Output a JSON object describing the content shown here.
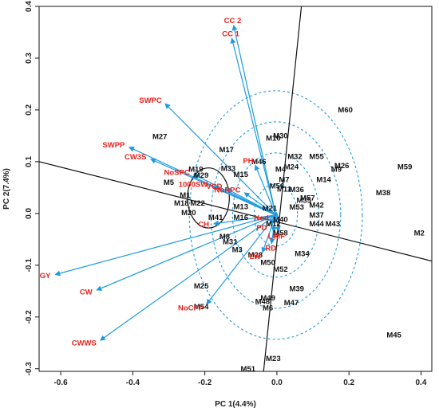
{
  "chart_data": {
    "type": "scatter",
    "subtype": "biplot",
    "title": "",
    "xlabel": "PC 1(4.4%)",
    "ylabel": "PC 2(7.4%)",
    "xlim": [
      -0.66,
      0.43
    ],
    "ylim": [
      -0.305,
      0.4
    ],
    "xticks": [
      -0.6,
      -0.4,
      -0.2,
      0.0,
      0.2,
      0.4
    ],
    "xtick_labels": [
      "-0.6",
      "-0.4",
      "-0.2",
      "0.0",
      "0.2",
      "0.4"
    ],
    "yticks": [
      -0.3,
      -0.2,
      -0.1,
      0.0,
      0.1,
      0.2,
      0.3,
      0.4
    ],
    "ytick_labels": [
      "-0.3",
      "-0.2",
      "-0.1",
      "0.0",
      "0.1",
      "0.2",
      "0.3",
      "0.4"
    ],
    "grid": false,
    "colors": {
      "vector": "#1e9be0",
      "vector_label": "#e8211b",
      "observation_label": "#111111",
      "circle": "#1e9be0",
      "axis_line": "#111111"
    },
    "origin": [
      -0.003,
      -0.003
    ],
    "concentric_circle_radii": [
      0.06,
      0.12,
      0.18,
      0.24
    ],
    "unit_circle": {
      "center": [
        -0.19,
        0.03
      ],
      "radius": 0.058
    },
    "axis_lines": [
      {
        "from": [
          -0.66,
          0.1
        ],
        "to": [
          0.43,
          -0.092
        ]
      },
      {
        "from": [
          -0.037,
          -0.305
        ],
        "to": [
          0.068,
          0.4
        ]
      }
    ],
    "vectors": [
      {
        "label": "CC 2",
        "x": -0.12,
        "y": 0.363
      },
      {
        "label": "CC 1",
        "x": -0.125,
        "y": 0.338
      },
      {
        "label": "SWPC",
        "x": -0.31,
        "y": 0.212
      },
      {
        "label": "SWPP",
        "x": -0.41,
        "y": 0.128
      },
      {
        "label": "CW3S",
        "x": -0.35,
        "y": 0.105
      },
      {
        "label": "NoSPC",
        "x": -0.23,
        "y": 0.075
      },
      {
        "label": "1000SW",
        "x": -0.18,
        "y": 0.052
      },
      {
        "label": "VCD",
        "x": -0.14,
        "y": 0.048
      },
      {
        "label": "NoRPC",
        "x": -0.09,
        "y": 0.04
      },
      {
        "label": "PH",
        "x": -0.06,
        "y": 0.093
      },
      {
        "label": "CH",
        "x": -0.175,
        "y": -0.02
      },
      {
        "label": "GY",
        "x": -0.615,
        "y": -0.118
      },
      {
        "label": "CW",
        "x": -0.5,
        "y": -0.148
      },
      {
        "label": "CWWS",
        "x": -0.49,
        "y": -0.245
      },
      {
        "label": "NoCPP",
        "x": -0.195,
        "y": -0.175
      },
      {
        "label": "Nod",
        "x": -0.01,
        "y": -0.005
      },
      {
        "label": "PD",
        "x": -0.02,
        "y": -0.02
      },
      {
        "label": "LF",
        "x": -0.01,
        "y": -0.035
      },
      {
        "label": "MF",
        "x": 0.005,
        "y": -0.035
      },
      {
        "label": "RD",
        "x": -0.015,
        "y": -0.058
      },
      {
        "label": "LW",
        "x": -0.04,
        "y": -0.075
      }
    ],
    "observations": [
      {
        "label": "M1",
        "x": -0.255,
        "y": 0.035
      },
      {
        "label": "M2",
        "x": 0.395,
        "y": -0.038
      },
      {
        "label": "M3",
        "x": -0.11,
        "y": -0.07
      },
      {
        "label": "M4",
        "x": 0.01,
        "y": 0.085
      },
      {
        "label": "M5",
        "x": -0.3,
        "y": 0.06
      },
      {
        "label": "M6",
        "x": -0.025,
        "y": -0.183
      },
      {
        "label": "M7",
        "x": 0.02,
        "y": 0.065
      },
      {
        "label": "M8",
        "x": -0.145,
        "y": -0.045
      },
      {
        "label": "M9",
        "x": 0.165,
        "y": 0.085
      },
      {
        "label": "M10",
        "x": -0.01,
        "y": 0.145
      },
      {
        "label": "M11",
        "x": 0.02,
        "y": 0.047
      },
      {
        "label": "M12",
        "x": -0.01,
        "y": -0.02
      },
      {
        "label": "M13",
        "x": -0.1,
        "y": 0.013
      },
      {
        "label": "M14",
        "x": 0.13,
        "y": 0.065
      },
      {
        "label": "M15",
        "x": -0.1,
        "y": 0.075
      },
      {
        "label": "M16",
        "x": -0.1,
        "y": -0.008
      },
      {
        "label": "M17",
        "x": -0.14,
        "y": 0.123
      },
      {
        "label": "M18",
        "x": -0.265,
        "y": 0.02
      },
      {
        "label": "M19",
        "x": -0.225,
        "y": 0.085
      },
      {
        "label": "M20",
        "x": -0.245,
        "y": 0.001
      },
      {
        "label": "M21",
        "x": -0.02,
        "y": 0.01
      },
      {
        "label": "M22",
        "x": -0.22,
        "y": 0.02
      },
      {
        "label": "M23",
        "x": -0.01,
        "y": -0.28
      },
      {
        "label": "M24",
        "x": 0.04,
        "y": 0.09
      },
      {
        "label": "M25",
        "x": -0.21,
        "y": -0.14
      },
      {
        "label": "M26",
        "x": 0.18,
        "y": 0.092
      },
      {
        "label": "M27",
        "x": -0.325,
        "y": 0.148
      },
      {
        "label": "M28",
        "x": -0.06,
        "y": -0.08
      },
      {
        "label": "M29",
        "x": -0.21,
        "y": 0.074
      },
      {
        "label": "M30",
        "x": 0.01,
        "y": 0.15
      },
      {
        "label": "M31",
        "x": -0.13,
        "y": -0.055
      },
      {
        "label": "M32",
        "x": 0.05,
        "y": 0.11
      },
      {
        "label": "M33",
        "x": -0.135,
        "y": 0.087
      },
      {
        "label": "M34",
        "x": 0.07,
        "y": -0.078
      },
      {
        "label": "M35",
        "x": 0.075,
        "y": 0.025
      },
      {
        "label": "M36",
        "x": 0.055,
        "y": 0.046
      },
      {
        "label": "M37",
        "x": 0.11,
        "y": -0.003
      },
      {
        "label": "M38",
        "x": 0.295,
        "y": 0.04
      },
      {
        "label": "M39",
        "x": 0.055,
        "y": -0.146
      },
      {
        "label": "M40",
        "x": 0.01,
        "y": -0.012
      },
      {
        "label": "M41",
        "x": -0.17,
        "y": -0.008
      },
      {
        "label": "M42",
        "x": 0.11,
        "y": 0.016
      },
      {
        "label": "M43",
        "x": 0.155,
        "y": -0.02
      },
      {
        "label": "M44",
        "x": 0.11,
        "y": -0.02
      },
      {
        "label": "M45",
        "x": 0.325,
        "y": -0.235
      },
      {
        "label": "M46",
        "x": -0.05,
        "y": 0.1
      },
      {
        "label": "M47",
        "x": 0.04,
        "y": -0.173
      },
      {
        "label": "M48",
        "x": -0.04,
        "y": -0.17
      },
      {
        "label": "M49",
        "x": -0.025,
        "y": -0.163
      },
      {
        "label": "M50",
        "x": -0.025,
        "y": -0.095
      },
      {
        "label": "M51",
        "x": -0.08,
        "y": -0.3
      },
      {
        "label": "M52",
        "x": 0.01,
        "y": -0.108
      },
      {
        "label": "M53",
        "x": 0.055,
        "y": 0.012
      },
      {
        "label": "M54",
        "x": -0.21,
        "y": -0.18
      },
      {
        "label": "M55",
        "x": 0.11,
        "y": 0.11
      },
      {
        "label": "M56",
        "x": 0.0,
        "y": 0.053
      },
      {
        "label": "M57",
        "x": 0.085,
        "y": 0.03
      },
      {
        "label": "M58",
        "x": 0.01,
        "y": -0.038
      },
      {
        "label": "M59",
        "x": 0.355,
        "y": 0.09
      },
      {
        "label": "M60",
        "x": 0.19,
        "y": 0.2
      }
    ]
  }
}
